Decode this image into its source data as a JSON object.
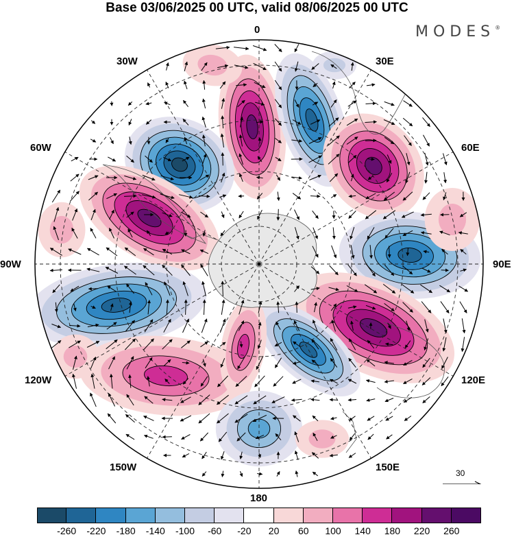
{
  "title": "Base 03/06/2025 00 UTC, valid 08/06/2025 00 UTC",
  "brand": "MODES",
  "brand_mark": "®",
  "longitude_labels": {
    "top": "0",
    "top_right": "30E",
    "upper_right": "60E",
    "right": "90E",
    "lower_right": "120E",
    "bottom_right": "150E",
    "bottom": "180",
    "bottom_left": "150W",
    "lower_left": "120W",
    "left": "90W",
    "upper_left": "60W",
    "top_left": "30W"
  },
  "reference_vector": {
    "label": "30"
  },
  "colorbar": {
    "ticks": [
      "-260",
      "-220",
      "-180",
      "-140",
      "-100",
      "-60",
      "-20",
      "20",
      "60",
      "100",
      "140",
      "180",
      "220",
      "260"
    ],
    "colors": [
      "#1b4a68",
      "#1f6596",
      "#2f86c2",
      "#5aa5d4",
      "#94bede",
      "#c4cde3",
      "#e3e2ef",
      "#ffffff",
      "#f8d8d8",
      "#f2adc0",
      "#e873a9",
      "#ce2d95",
      "#a1137e",
      "#640f6e",
      "#4b0a63"
    ]
  },
  "map_style": {
    "positive_colors": [
      "#f8d8d8",
      "#f2adc0",
      "#e873a9",
      "#ce2d95",
      "#a1137e",
      "#640f6e"
    ],
    "negative_colors": [
      "#e3e2ef",
      "#c4cde3",
      "#94bede",
      "#5aa5d4",
      "#2f86c2",
      "#1f6596",
      "#1b4a68"
    ],
    "land_color": "#e8e8e8"
  }
}
